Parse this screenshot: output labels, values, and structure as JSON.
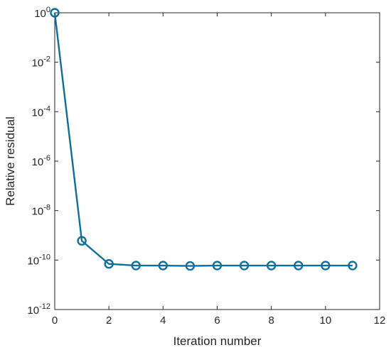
{
  "chart_data": {
    "type": "line",
    "title": "",
    "xlabel": "Iteration number",
    "ylabel": "Relative residual",
    "yscale": "log",
    "xlim": [
      0,
      12
    ],
    "ylim": [
      1e-12,
      1
    ],
    "grid": false,
    "x_ticks": [
      {
        "value": 0,
        "label": "0"
      },
      {
        "value": 2,
        "label": "2"
      },
      {
        "value": 4,
        "label": "4"
      },
      {
        "value": 6,
        "label": "6"
      },
      {
        "value": 8,
        "label": "8"
      },
      {
        "value": 10,
        "label": "10"
      },
      {
        "value": 12,
        "label": "12"
      }
    ],
    "y_ticks": [
      {
        "value": 1,
        "base": "10",
        "exp": "0"
      },
      {
        "value": 0.01,
        "base": "10",
        "exp": "-2"
      },
      {
        "value": 0.0001,
        "base": "10",
        "exp": "-4"
      },
      {
        "value": 1e-06,
        "base": "10",
        "exp": "-6"
      },
      {
        "value": 1e-08,
        "base": "10",
        "exp": "-8"
      },
      {
        "value": 1e-10,
        "base": "10",
        "exp": "-10"
      },
      {
        "value": 1e-12,
        "base": "10",
        "exp": "-12"
      }
    ],
    "series": [
      {
        "color": "#0f6e9c",
        "marker": "circle",
        "x": [
          0,
          1,
          2,
          3,
          4,
          5,
          6,
          7,
          8,
          9,
          10,
          11
        ],
        "y": [
          1,
          6e-10,
          7e-11,
          6e-11,
          6e-11,
          5.8e-11,
          6e-11,
          6e-11,
          6e-11,
          6e-11,
          6e-11,
          6e-11
        ]
      }
    ]
  }
}
